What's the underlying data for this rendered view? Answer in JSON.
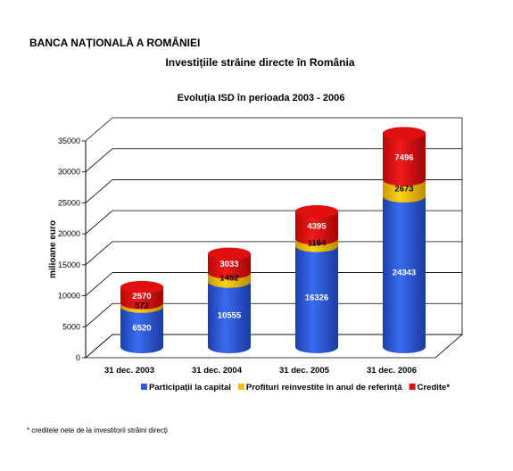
{
  "header": {
    "bank": "BANCA NAȚIONALĂ A ROMÂNIEI",
    "title": "Investițiile străine directe în România"
  },
  "footnote": "* creditele nete de la investitorii străini direcți",
  "chart_data": {
    "type": "bar",
    "stacked": true,
    "title": "Evoluția ISD în perioada 2003 - 2006",
    "ylabel": "milioane euro",
    "xlabel": "",
    "ylim": [
      0,
      35000
    ],
    "yticks": [
      0,
      5000,
      10000,
      15000,
      20000,
      25000,
      30000,
      35000
    ],
    "grid": true,
    "legend_position": "bottom",
    "categories": [
      "31 dec. 2003",
      "31 dec. 2004",
      "31 dec. 2005",
      "31 dec. 2006"
    ],
    "series": [
      {
        "name": "Participații la capital",
        "values": [
          6520,
          10555,
          16326,
          24343
        ],
        "color": "#2f5bd8"
      },
      {
        "name": "Profituri reinvestite în anul de referință",
        "values": [
          572,
          1452,
          1164,
          2673
        ],
        "color": "#f2c200"
      },
      {
        "name": "Credite*",
        "values": [
          2570,
          3033,
          4395,
          7496
        ],
        "color": "#e01010"
      }
    ]
  }
}
